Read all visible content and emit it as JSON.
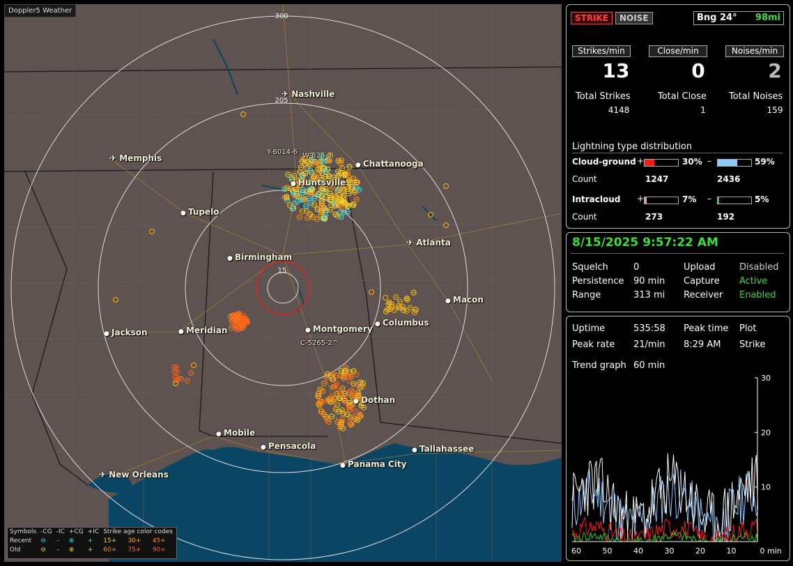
{
  "app_title": "Doppler5 Weather",
  "map": {
    "range_labels": [
      "300",
      "205",
      "15"
    ],
    "cities": [
      {
        "name": "Nashville",
        "icon": "airport"
      },
      {
        "name": "Memphis",
        "icon": "airport"
      },
      {
        "name": "Chattanooga",
        "icon": "dot"
      },
      {
        "name": "Huntsville",
        "icon": "dot"
      },
      {
        "name": "Tupelo",
        "icon": "dot"
      },
      {
        "name": "Atlanta",
        "icon": "airport"
      },
      {
        "name": "Birmingham",
        "icon": "dot"
      },
      {
        "name": "Macon",
        "icon": "dot"
      },
      {
        "name": "Jackson",
        "icon": "dot"
      },
      {
        "name": "Meridian",
        "icon": "dot"
      },
      {
        "name": "Montgomery",
        "icon": "dot"
      },
      {
        "name": "Columbus",
        "icon": "dot"
      },
      {
        "name": "Dothan",
        "icon": "dot"
      },
      {
        "name": "Mobile",
        "icon": "dot"
      },
      {
        "name": "Pensacola",
        "icon": "dot"
      },
      {
        "name": "Tallahassee",
        "icon": "dot"
      },
      {
        "name": "Panama City",
        "icon": "dot"
      },
      {
        "name": "New Orleans",
        "icon": "airport"
      }
    ],
    "storm_tags": [
      "Y-6014-6",
      "W-828-3",
      "C-5265-2^"
    ]
  },
  "legend": {
    "symbols_label": "Symbols",
    "col_headers": [
      "-CG",
      "-IC",
      "+CG",
      "+IC"
    ],
    "age_header": "Strike age color codes",
    "rows": [
      {
        "label": "Recent",
        "ages": [
          "15+",
          "30+",
          "45+"
        ]
      },
      {
        "label": "Old",
        "ages": [
          "60+",
          "75+",
          "90+"
        ]
      }
    ]
  },
  "top": {
    "strike_btn": "STRIKE",
    "noise_btn": "NOISE",
    "bearing": "Bng 24°",
    "distance": "98mi",
    "rates": [
      {
        "header": "Strikes/min",
        "value": "13",
        "total_label": "Total Strikes",
        "total": "4148"
      },
      {
        "header": "Close/min",
        "value": "0",
        "total_label": "Total Close",
        "total": "1"
      },
      {
        "header": "Noises/min",
        "value": "2",
        "total_label": "Total Noises",
        "total": "159"
      }
    ],
    "dist_title": "Lightning type distribution",
    "cg_label": "Cloud-ground",
    "ic_label": "Intracloud",
    "count_label": "Count",
    "cg_pos_pct": "30%",
    "cg_pos_frac": 0.3,
    "cg_neg_pct": "59%",
    "cg_neg_frac": 0.59,
    "cg_pos_count": "1247",
    "cg_neg_count": "2436",
    "ic_pos_pct": "7%",
    "ic_pos_frac": 0.07,
    "ic_neg_pct": "5%",
    "ic_neg_frac": 0.05,
    "ic_pos_count": "273",
    "ic_neg_count": "192",
    "plus": "+",
    "minus": "–"
  },
  "status": {
    "datetime": "8/15/2025 9:57:22 AM",
    "rows": [
      {
        "k1": "Squelch",
        "v1": "0",
        "k2": "Upload",
        "v2": "Disabled"
      },
      {
        "k1": "Persistence",
        "v1": "90 min",
        "k2": "Capture",
        "v2": "Active"
      },
      {
        "k1": "Range",
        "v1": "313 mi",
        "k2": "Receiver",
        "v2": "Enabled"
      }
    ]
  },
  "trend": {
    "uptime_label": "Uptime",
    "uptime": "535:58",
    "peak_time_label": "Peak time",
    "peak_time": "8:29 AM",
    "plot_label": "Plot",
    "plot": "Strike",
    "peak_rate_label": "Peak rate",
    "peak_rate": "21/min",
    "trend_label": "Trend graph",
    "trend_window": "60 min",
    "y_ticks": [
      "30",
      "20",
      "10"
    ],
    "x_ticks": [
      "60",
      "50",
      "40",
      "30",
      "20",
      "10",
      "0"
    ],
    "x_unit": "min"
  },
  "colors": {
    "recent_15": "#ffd21f",
    "recent_30": "#ffb400",
    "recent_45": "#ff8c1a",
    "old_60": "#ff8c1a",
    "old_75": "#ff6a1a",
    "old_90": "#ff5a1a",
    "ic_plus": "#40e0e0",
    "active": "#3ddb3d",
    "cg_pos": "#ff1a1a",
    "cg_neg": "#8ec9ff",
    "ic_pos": "#ff8fb0",
    "ic_neg": "#22cc22"
  }
}
